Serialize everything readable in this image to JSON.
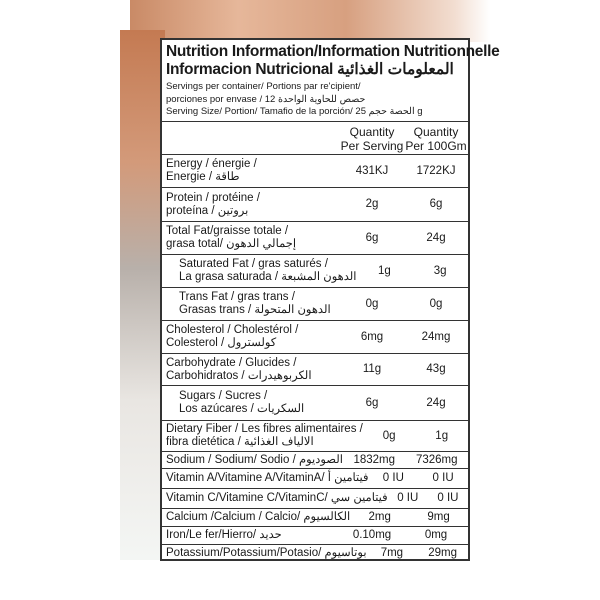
{
  "title_line1": "Nutrition Information/Information Nutritionnelle",
  "title_line2": "Informacion Nutricional  المعلومات الغذائية",
  "servings_line1": "Servings per container/ Portions par re'cipient/",
  "servings_line2": "porciones por envase /  حصص للحاوية الواحدة  12",
  "serving_size": "Serving Size/ Portion/ Tamafio de la porción/ الحصة حجم 25 g",
  "columns": {
    "per_serving": [
      "Quantity",
      "Per Serving"
    ],
    "per_100g": [
      "Quantity",
      "Per 100Gm"
    ]
  },
  "rows": [
    {
      "lines": [
        "Energy / énergie /",
        "Energie / طاقة"
      ],
      "per_serving": "431KJ",
      "per_100g": "1722KJ"
    },
    {
      "lines": [
        "Protein / protéine /",
        "proteína / بروتين"
      ],
      "per_serving": "2g",
      "per_100g": "6g"
    },
    {
      "lines": [
        "Total Fat/graisse totale /",
        "grasa total/ إجمالي الدهون"
      ],
      "per_serving": "6g",
      "per_100g": "24g"
    },
    {
      "lines": [
        "Saturated Fat / gras saturés /",
        "La grasa saturada / الدهون المشبعة"
      ],
      "per_serving": "1g",
      "per_100g": "3g"
    },
    {
      "lines": [
        "Trans Fat / gras trans /",
        "Grasas trans / الدهون المتحولة"
      ],
      "per_serving": "0g",
      "per_100g": "0g"
    },
    {
      "lines": [
        "Cholesterol / Cholestérol /",
        "Colesterol / كولسترول"
      ],
      "per_serving": "6mg",
      "per_100g": "24mg"
    },
    {
      "lines": [
        "Carbohydrate / Glucides /",
        "Carbohidratos / الكربوهيدرات"
      ],
      "per_serving": "11g",
      "per_100g": "43g"
    },
    {
      "lines": [
        "Sugars / Sucres /",
        "Los azúcares / السكريات"
      ],
      "per_serving": "6g",
      "per_100g": "24g"
    },
    {
      "lines": [
        "Dietary Fiber / Les fibres alimentaires /",
        "fibra dietética / الالياف الغذائية"
      ],
      "per_serving": "0g",
      "per_100g": "1g"
    },
    {
      "lines": [
        "Sodium / Sodium/ Sodio / الصوديوم"
      ],
      "per_serving": "1832mg",
      "per_100g": "7326mg"
    },
    {
      "lines": [
        "Vitamin A/Vitamine A/VitaminA/ فيتامين أ"
      ],
      "per_serving": "0 IU",
      "per_100g": "0 IU"
    },
    {
      "lines": [
        "Vitamin C/Vitamine C/VitaminC/ فيتامين سي"
      ],
      "per_serving": "0 IU",
      "per_100g": "0 IU"
    },
    {
      "lines": [
        "Calcium /Calcium / Calcio/ الكالسيوم"
      ],
      "per_serving": "2mg",
      "per_100g": "9mg"
    },
    {
      "lines": [
        "Iron/Le fer/Hierro/ حديد"
      ],
      "per_serving": "0.10mg",
      "per_100g": "0mg"
    },
    {
      "lines": [
        "Potassium/Potassium/Potasio/ بوتاسيوم"
      ],
      "per_serving": "7mg",
      "per_100g": "29mg"
    }
  ]
}
